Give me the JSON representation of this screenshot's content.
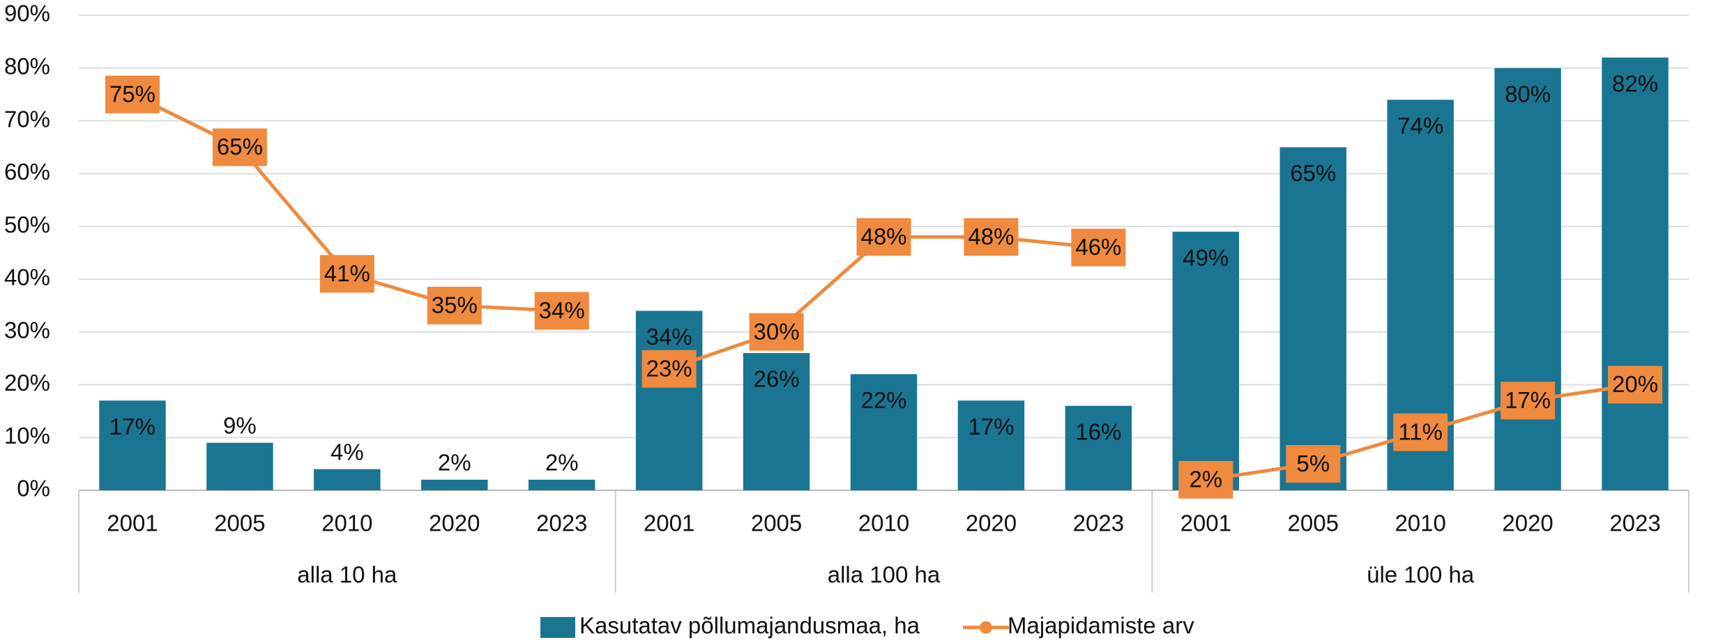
{
  "chart_data": {
    "type": "bar_line",
    "groups": [
      "alla 10 ha",
      "alla 100 ha",
      "üle 100 ha"
    ],
    "categories": [
      "2001",
      "2005",
      "2010",
      "2020",
      "2023",
      "2001",
      "2005",
      "2010",
      "2020",
      "2023",
      "2001",
      "2005",
      "2010",
      "2020",
      "2023"
    ],
    "series": [
      {
        "name": "Kasutatav põllumajandusmaa, ha",
        "type": "bar",
        "color": "#1a7593",
        "values": [
          17,
          9,
          4,
          2,
          2,
          34,
          26,
          22,
          17,
          16,
          49,
          65,
          74,
          80,
          82
        ],
        "value_labels": [
          "17%",
          "9%",
          "4%",
          "2%",
          "2%",
          "34%",
          "26%",
          "22%",
          "17%",
          "16%",
          "49%",
          "65%",
          "74%",
          "80%",
          "82%"
        ]
      },
      {
        "name": "Majapidamiste arv",
        "type": "line",
        "color": "#ef8a3e",
        "values": [
          75,
          65,
          41,
          35,
          34,
          23,
          30,
          48,
          48,
          46,
          2,
          5,
          11,
          17,
          20
        ],
        "value_labels": [
          "75%",
          "65%",
          "41%",
          "35%",
          "34%",
          "23%",
          "30%",
          "48%",
          "48%",
          "46%",
          "2%",
          "5%",
          "11%",
          "17%",
          "20%"
        ]
      }
    ],
    "ylim": [
      0,
      90
    ],
    "yticks": [
      {
        "value": 0,
        "label": "0%"
      },
      {
        "value": 10,
        "label": "10%"
      },
      {
        "value": 20,
        "label": "20%"
      },
      {
        "value": 30,
        "label": "30%"
      },
      {
        "value": 40,
        "label": "40%"
      },
      {
        "value": 50,
        "label": "50%"
      },
      {
        "value": 60,
        "label": "60%"
      },
      {
        "value": 70,
        "label": "70%"
      },
      {
        "value": 80,
        "label": "80%"
      },
      {
        "value": 90,
        "label": "90%"
      }
    ],
    "grid": true,
    "legend": "bottom"
  }
}
